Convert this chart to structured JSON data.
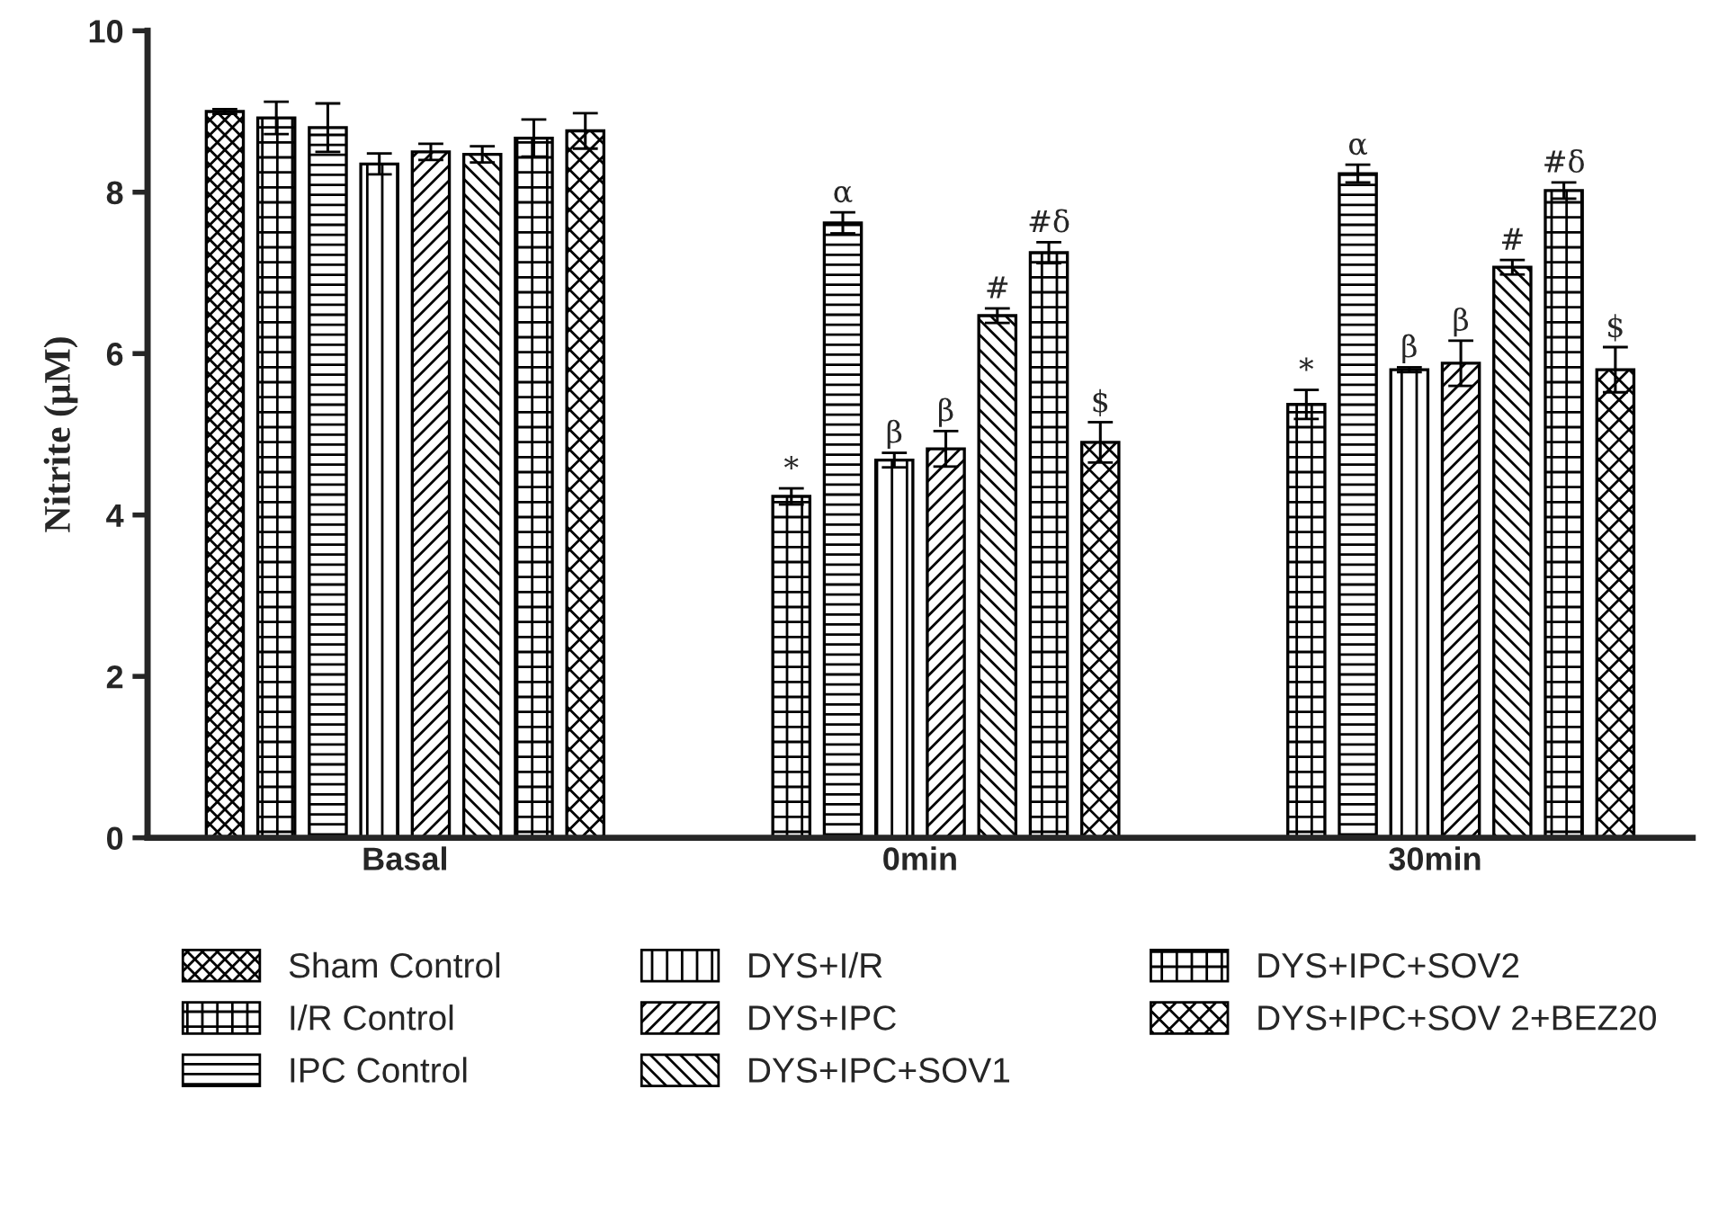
{
  "chart_data": {
    "type": "bar",
    "ylabel": "Nitrite (μM)",
    "categories": [
      "Basal",
      "0min",
      "30min"
    ],
    "series": [
      {
        "name": "Sham Control",
        "color": "#000000",
        "values": [
          9.0,
          null,
          null
        ],
        "errors": [
          0.03,
          null,
          null
        ]
      },
      {
        "name": "I/R Control",
        "color": "#000000",
        "values": [
          8.92,
          4.23,
          5.37
        ],
        "errors": [
          0.2,
          0.1,
          0.18
        ],
        "value_labels": [
          null,
          "*",
          "*"
        ]
      },
      {
        "name": "IPC Control",
        "color": "#000000",
        "values": [
          8.8,
          7.62,
          8.23
        ],
        "errors": [
          0.3,
          0.13,
          0.11
        ],
        "value_labels": [
          null,
          "α",
          "α"
        ]
      },
      {
        "name": "DYS+I/R",
        "color": "#000000",
        "values": [
          8.35,
          4.68,
          5.8
        ],
        "errors": [
          0.13,
          0.09,
          0.03
        ],
        "value_labels": [
          null,
          "β",
          "β"
        ]
      },
      {
        "name": "DYS+IPC",
        "color": "#000000",
        "values": [
          8.5,
          4.82,
          5.88
        ],
        "errors": [
          0.1,
          0.22,
          0.28
        ],
        "value_labels": [
          null,
          "β",
          "β"
        ]
      },
      {
        "name": "DYS+IPC+SOV1",
        "color": "#000000",
        "values": [
          8.47,
          6.47,
          7.07
        ],
        "errors": [
          0.1,
          0.09,
          0.09
        ],
        "value_labels": [
          null,
          "#",
          "#"
        ]
      },
      {
        "name": "DYS+IPC+SOV2",
        "color": "#000000",
        "values": [
          8.67,
          7.25,
          8.02
        ],
        "errors": [
          0.23,
          0.13,
          0.1
        ],
        "value_labels": [
          null,
          "#δ",
          "#δ"
        ]
      },
      {
        "name": "DYS+IPC+SOV 2+BEZ20",
        "color": "#000000",
        "values": [
          8.76,
          4.9,
          5.8
        ],
        "errors": [
          0.22,
          0.25,
          0.28
        ],
        "value_labels": [
          null,
          "$",
          "$"
        ]
      }
    ],
    "ylim": [
      0,
      10
    ],
    "yticks": [
      0,
      2,
      4,
      6,
      8,
      10
    ],
    "grid": false,
    "legend": "bottom"
  }
}
